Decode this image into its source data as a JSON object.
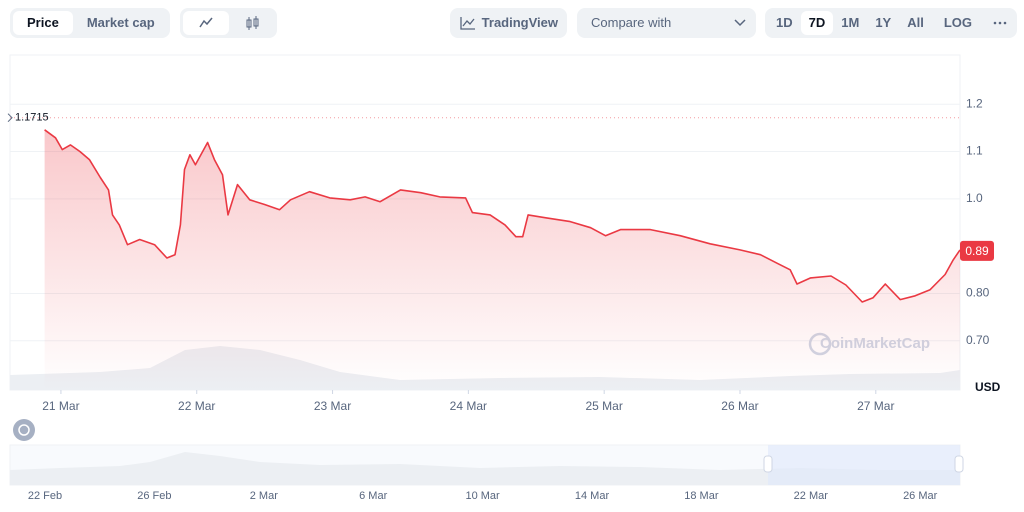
{
  "toolbar": {
    "views": [
      "Price",
      "Market cap"
    ],
    "trading_view": "TradingView",
    "compare": "Compare with",
    "ranges": [
      "1D",
      "7D",
      "1M",
      "1Y",
      "All"
    ],
    "log": "LOG"
  },
  "chart_data": {
    "type": "line",
    "currency": "USD",
    "watermark": "CoinMarketCap",
    "xlim": [
      -0.375,
      6.62
    ],
    "xticks": [
      {
        "value": 0,
        "label": "21 Mar"
      },
      {
        "value": 1,
        "label": "22 Mar"
      },
      {
        "value": 2,
        "label": "23 Mar"
      },
      {
        "value": 3,
        "label": "24 Mar"
      },
      {
        "value": 4,
        "label": "25 Mar"
      },
      {
        "value": 5,
        "label": "26 Mar"
      },
      {
        "value": 6,
        "label": "27 Mar"
      }
    ],
    "ylim": [
      0.596,
      1.304
    ],
    "yticks": [
      {
        "value": 0.7,
        "label": "0.70"
      },
      {
        "value": 0.8,
        "label": "0.80"
      },
      {
        "value": 1,
        "label": "1.0"
      },
      1.1,
      1.2
    ],
    "grid": true,
    "open_price": 1.1715,
    "current_price": 0.89,
    "series": [
      {
        "name": "Price",
        "color": "#ea3943",
        "x": [
          -0.12,
          -0.04,
          0.01,
          0.07,
          0.14,
          0.21,
          0.29,
          0.35,
          0.38,
          0.43,
          0.49,
          0.58,
          0.69,
          0.78,
          0.84,
          0.88,
          0.91,
          0.95,
          0.99,
          1.08,
          1.13,
          1.19,
          1.23,
          1.3,
          1.39,
          1.5,
          1.61,
          1.69,
          1.83,
          1.98,
          2.13,
          2.24,
          2.35,
          2.5,
          2.65,
          2.79,
          2.98,
          3.03,
          3.16,
          3.27,
          3.35,
          3.4,
          3.44,
          3.57,
          3.75,
          3.9,
          4.01,
          4.12,
          4.34,
          4.56,
          4.78,
          5.0,
          5.15,
          5.28,
          5.37,
          5.42,
          5.52,
          5.67,
          5.78,
          5.9,
          5.98,
          6.07,
          6.18,
          6.29,
          6.4,
          6.51,
          6.57,
          6.62
        ],
        "values": [
          1.146,
          1.129,
          1.104,
          1.114,
          1.1,
          1.083,
          1.045,
          1.019,
          0.966,
          0.945,
          0.903,
          0.914,
          0.903,
          0.875,
          0.882,
          0.945,
          1.062,
          1.093,
          1.072,
          1.119,
          1.083,
          1.051,
          0.966,
          1.03,
          0.998,
          0.988,
          0.977,
          0.998,
          1.015,
          1.002,
          0.998,
          1.004,
          0.994,
          1.019,
          1.013,
          1.004,
          1.002,
          0.971,
          0.966,
          0.945,
          0.92,
          0.92,
          0.966,
          0.96,
          0.952,
          0.939,
          0.922,
          0.935,
          0.935,
          0.922,
          0.905,
          0.892,
          0.882,
          0.863,
          0.85,
          0.82,
          0.833,
          0.837,
          0.818,
          0.782,
          0.791,
          0.82,
          0.787,
          0.795,
          0.808,
          0.84,
          0.871,
          0.892
        ]
      }
    ]
  },
  "navigator": {
    "labels": [
      "22 Feb",
      "26 Feb",
      "2 Mar",
      "6 Mar",
      "10 Mar",
      "14 Mar",
      "18 Mar",
      "22 Mar",
      "26 Mar"
    ]
  }
}
